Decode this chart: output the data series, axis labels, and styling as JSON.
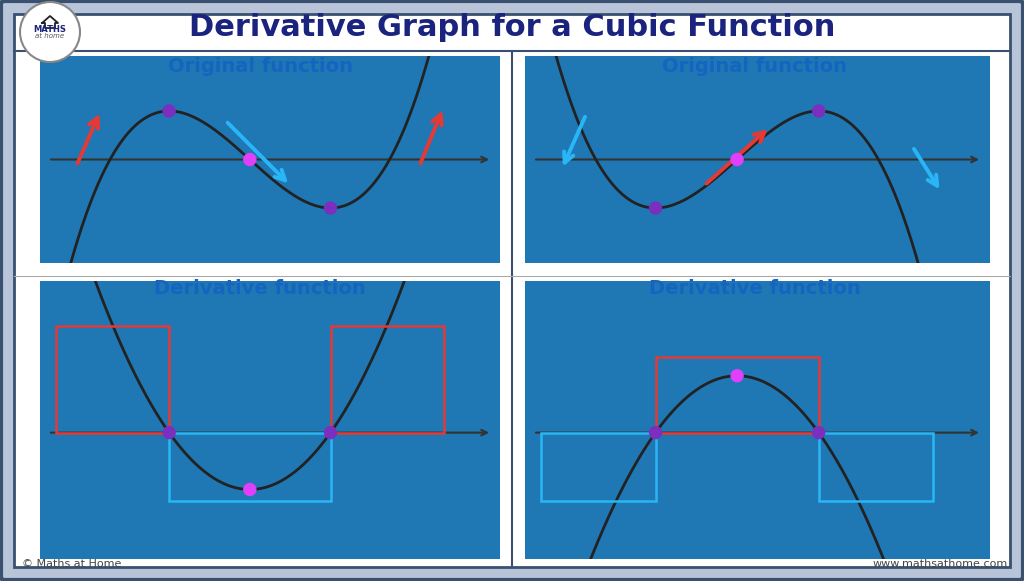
{
  "title": "Derivative Graph for a Cubic Function",
  "title_color": "#1a237e",
  "title_fontsize": 22,
  "bg_outer": "#b8c4d8",
  "bg_panel": "#ffffff",
  "label_orig": "Original function",
  "label_deriv": "Derivative function",
  "label_color": "#1565c0",
  "label_fontsize": 14,
  "dot_color_purple": "#7b2fbe",
  "dot_color_magenta": "#e040fb",
  "arrow_red": "#e53935",
  "arrow_blue": "#29b6f6",
  "rect_red": "#e53935",
  "rect_blue": "#29b6f6",
  "curve_color": "#222222",
  "axis_color": "#333333",
  "copyright": "© Maths at Home",
  "website": "www.mathsathome.com"
}
